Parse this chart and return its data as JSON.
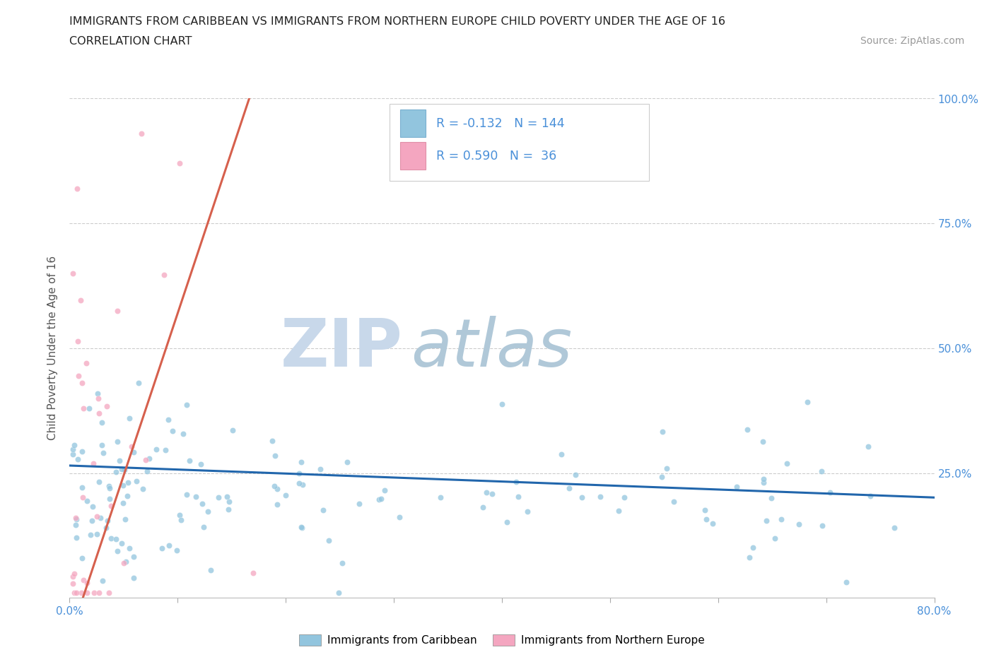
{
  "title": "IMMIGRANTS FROM CARIBBEAN VS IMMIGRANTS FROM NORTHERN EUROPE CHILD POVERTY UNDER THE AGE OF 16",
  "subtitle": "CORRELATION CHART",
  "source": "Source: ZipAtlas.com",
  "ylabel": "Child Poverty Under the Age of 16",
  "xlim": [
    0.0,
    0.8
  ],
  "ylim": [
    0.0,
    1.0
  ],
  "caribbean_color": "#92c5de",
  "northern_europe_color": "#f4a6c0",
  "caribbean_trend_color": "#2166ac",
  "northern_europe_trend_color": "#d6604d",
  "R_caribbean": -0.132,
  "N_caribbean": 144,
  "R_northern_europe": 0.59,
  "N_northern_europe": 36,
  "legend_label_caribbean": "Immigrants from Caribbean",
  "legend_label_northern_europe": "Immigrants from Northern Europe",
  "watermark_zip": "ZIP",
  "watermark_atlas": "atlas",
  "tick_color": "#4a90d9",
  "grid_color": "#cccccc",
  "ylabel_color": "#555555",
  "title_color": "#222222"
}
